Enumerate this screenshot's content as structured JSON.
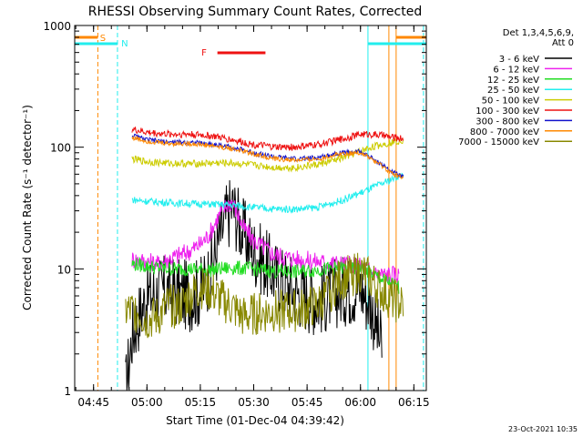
{
  "chart_data": {
    "type": "line",
    "title": "RHESSI Observing Summary Count Rates, Corrected",
    "xlabel": "Start Time (01-Dec-04 04:39:42)",
    "ylabel": "Corrected Count Rate (s⁻¹ detector⁻¹)",
    "yscale": "log",
    "ylim": [
      1,
      1000
    ],
    "xlim": [
      "04:39:42",
      "06:18:30"
    ],
    "x_ticks": [
      "04:45",
      "05:00",
      "05:15",
      "05:30",
      "05:45",
      "06:00",
      "06:15"
    ],
    "y_ticks": [
      "1",
      "10",
      "100",
      "1000"
    ],
    "legend_header": [
      "Det 1,3,4,5,6,9,",
      "Att 0"
    ],
    "legend_position": "right",
    "timestamp": "23-Oct-2021 10:35",
    "flag_labels": {
      "saa": "S",
      "night": "N",
      "flare": "F"
    },
    "colors": {
      "c1": "#000000",
      "c2": "#ee22ee",
      "c3": "#22dd22",
      "c4": "#22eeee",
      "c5": "#cccc00",
      "c6": "#ee1111",
      "c7": "#1111cc",
      "c8": "#ff8800",
      "c9": "#888800",
      "saa": "#ff8800",
      "night": "#22eeee",
      "flare": "#ee1111"
    },
    "series": [
      {
        "name": "3 - 6 keV",
        "color": "#000000",
        "x": [
          4.9,
          4.93,
          4.95,
          5.0,
          5.05,
          5.1,
          5.15,
          5.2,
          5.25,
          5.29,
          5.32,
          5.34,
          5.37,
          5.4,
          5.45,
          5.5,
          5.6,
          5.7,
          5.8,
          5.9,
          6.0,
          6.05,
          6.08,
          6.1
        ],
        "y": [
          1.0,
          2.8,
          3.6,
          6.0,
          6.5,
          6.8,
          6.2,
          6.0,
          6.5,
          9.0,
          13,
          18,
          26,
          33,
          20,
          14,
          9.0,
          6.5,
          5.5,
          6.5,
          7.0,
          5.0,
          3.0,
          2.2
        ]
      },
      {
        "name": "6 - 12 keV",
        "color": "#ee22ee",
        "x": [
          4.93,
          5.0,
          5.05,
          5.1,
          5.15,
          5.2,
          5.25,
          5.29,
          5.32,
          5.34,
          5.37,
          5.4,
          5.45,
          5.5,
          5.6,
          5.7,
          5.8,
          5.9,
          6.0,
          6.05,
          6.1,
          6.15,
          6.18
        ],
        "y": [
          12,
          11.5,
          11,
          12,
          13,
          14,
          16,
          19,
          24,
          28,
          33,
          36,
          22,
          17,
          13,
          12,
          11.5,
          11,
          10.5,
          9.5,
          9.0,
          9.0,
          8.8
        ]
      },
      {
        "name": "12 - 25 keV",
        "color": "#22dd22",
        "x": [
          4.93,
          5.0,
          5.1,
          5.2,
          5.3,
          5.4,
          5.5,
          5.6,
          5.7,
          5.8,
          5.9,
          6.0,
          6.05,
          6.1,
          6.15,
          6.18
        ],
        "y": [
          11,
          10.5,
          10,
          10,
          9.8,
          10.2,
          10,
          9.5,
          9.5,
          9.8,
          10.2,
          10.0,
          9.2,
          8.2,
          7.5,
          7.0
        ]
      },
      {
        "name": "25 - 50 keV",
        "color": "#22eeee",
        "x": [
          4.93,
          5.0,
          5.1,
          5.2,
          5.3,
          5.4,
          5.5,
          5.6,
          5.7,
          5.8,
          5.9,
          6.0,
          6.05,
          6.1,
          6.15,
          6.2
        ],
        "y": [
          37,
          36,
          35,
          34.5,
          34,
          33.5,
          32,
          31,
          31,
          32,
          36,
          42,
          46,
          50,
          55,
          60
        ]
      },
      {
        "name": "50 - 100 keV",
        "color": "#cccc00",
        "x": [
          4.93,
          5.0,
          5.1,
          5.2,
          5.3,
          5.4,
          5.5,
          5.6,
          5.7,
          5.8,
          5.9,
          6.0,
          6.05,
          6.1,
          6.15,
          6.2
        ],
        "y": [
          80,
          76,
          74,
          73,
          74,
          74,
          71,
          68,
          68,
          72,
          80,
          92,
          100,
          105,
          110,
          115
        ]
      },
      {
        "name": "100 - 300 keV",
        "color": "#ee1111",
        "x": [
          4.93,
          5.0,
          5.1,
          5.2,
          5.3,
          5.4,
          5.5,
          5.6,
          5.7,
          5.8,
          5.9,
          6.0,
          6.05,
          6.1,
          6.15,
          6.2
        ],
        "y": [
          140,
          132,
          128,
          128,
          124,
          115,
          105,
          100,
          100,
          105,
          115,
          128,
          128,
          125,
          120,
          118
        ]
      },
      {
        "name": "300 - 800 keV",
        "color": "#1111cc",
        "x": [
          4.93,
          5.0,
          5.1,
          5.2,
          5.3,
          5.4,
          5.5,
          5.6,
          5.7,
          5.8,
          5.9,
          6.0,
          6.05,
          6.1,
          6.15,
          6.2
        ],
        "y": [
          125,
          115,
          110,
          110,
          106,
          100,
          90,
          83,
          80,
          82,
          90,
          92,
          82,
          72,
          62,
          58
        ]
      },
      {
        "name": "800 - 7000 keV",
        "color": "#ff8800",
        "x": [
          4.93,
          5.0,
          5.1,
          5.2,
          5.3,
          5.4,
          5.5,
          5.6,
          5.7,
          5.8,
          5.9,
          6.0,
          6.05,
          6.1,
          6.15,
          6.2
        ],
        "y": [
          120,
          112,
          107,
          107,
          103,
          97,
          88,
          80,
          78,
          80,
          88,
          90,
          80,
          70,
          60,
          57
        ]
      },
      {
        "name": "7000 - 15000 keV",
        "color": "#888800",
        "x": [
          4.9,
          4.95,
          5.0,
          5.05,
          5.1,
          5.15,
          5.2,
          5.25,
          5.3,
          5.35,
          5.4,
          5.45,
          5.5,
          5.6,
          5.7,
          5.8,
          5.9,
          6.0,
          6.05,
          6.1,
          6.15,
          6.2
        ],
        "y": [
          4.5,
          4.5,
          3.8,
          4.0,
          5.0,
          4.8,
          6.0,
          7.0,
          6.5,
          5.5,
          4.8,
          4.0,
          4.2,
          4.5,
          4.5,
          5.0,
          8.0,
          9.5,
          8.0,
          6.5,
          5.5,
          5.0
        ]
      }
    ]
  }
}
